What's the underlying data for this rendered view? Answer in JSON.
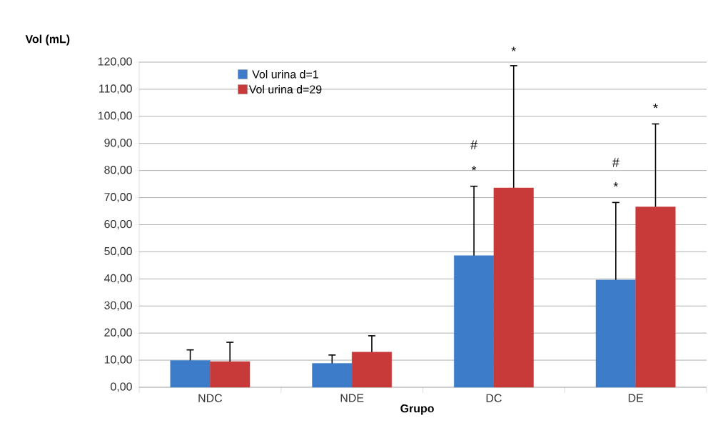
{
  "chart_data": {
    "type": "bar",
    "xlabel": "Grupo",
    "ylabel": "Vol (mL)",
    "categories": [
      "NDC",
      "NDE",
      "DC",
      "DE"
    ],
    "series": [
      {
        "name": "Vol urina d=1",
        "color": "#3d7cc9",
        "values": [
          9.9,
          8.8,
          48.6,
          39.6
        ],
        "errors": [
          [
            9.9,
            13.8
          ],
          [
            8.8,
            11.9
          ],
          [
            48.6,
            74.2
          ],
          [
            39.6,
            68.2
          ]
        ]
      },
      {
        "name": "Vol urina d=29",
        "color": "#c83a3a",
        "values": [
          9.5,
          13.0,
          73.6,
          66.6
        ],
        "errors": [
          [
            9.5,
            16.6
          ],
          [
            13.0,
            19.0
          ],
          [
            73.6,
            118.7
          ],
          [
            66.6,
            97.2
          ]
        ]
      }
    ],
    "ylim": [
      0,
      120
    ],
    "yticks": [
      {
        "value": 0,
        "label": "0,00"
      },
      {
        "value": 10,
        "label": "10,00"
      },
      {
        "value": 20,
        "label": "20,00"
      },
      {
        "value": 30,
        "label": "30,00"
      },
      {
        "value": 40,
        "label": "40,00"
      },
      {
        "value": 50,
        "label": "50,00"
      },
      {
        "value": 60,
        "label": "60,00"
      },
      {
        "value": 70,
        "label": "70,00"
      },
      {
        "value": 80,
        "label": "80,00"
      },
      {
        "value": 90,
        "label": "90,00"
      },
      {
        "value": 100,
        "label": "100,00"
      },
      {
        "value": 110,
        "label": "110,00"
      },
      {
        "value": 120,
        "label": "120,00"
      }
    ],
    "annotations": [
      "*",
      "#",
      "*",
      "*",
      "#",
      "*"
    ],
    "grid": "y",
    "legend": "top left"
  }
}
